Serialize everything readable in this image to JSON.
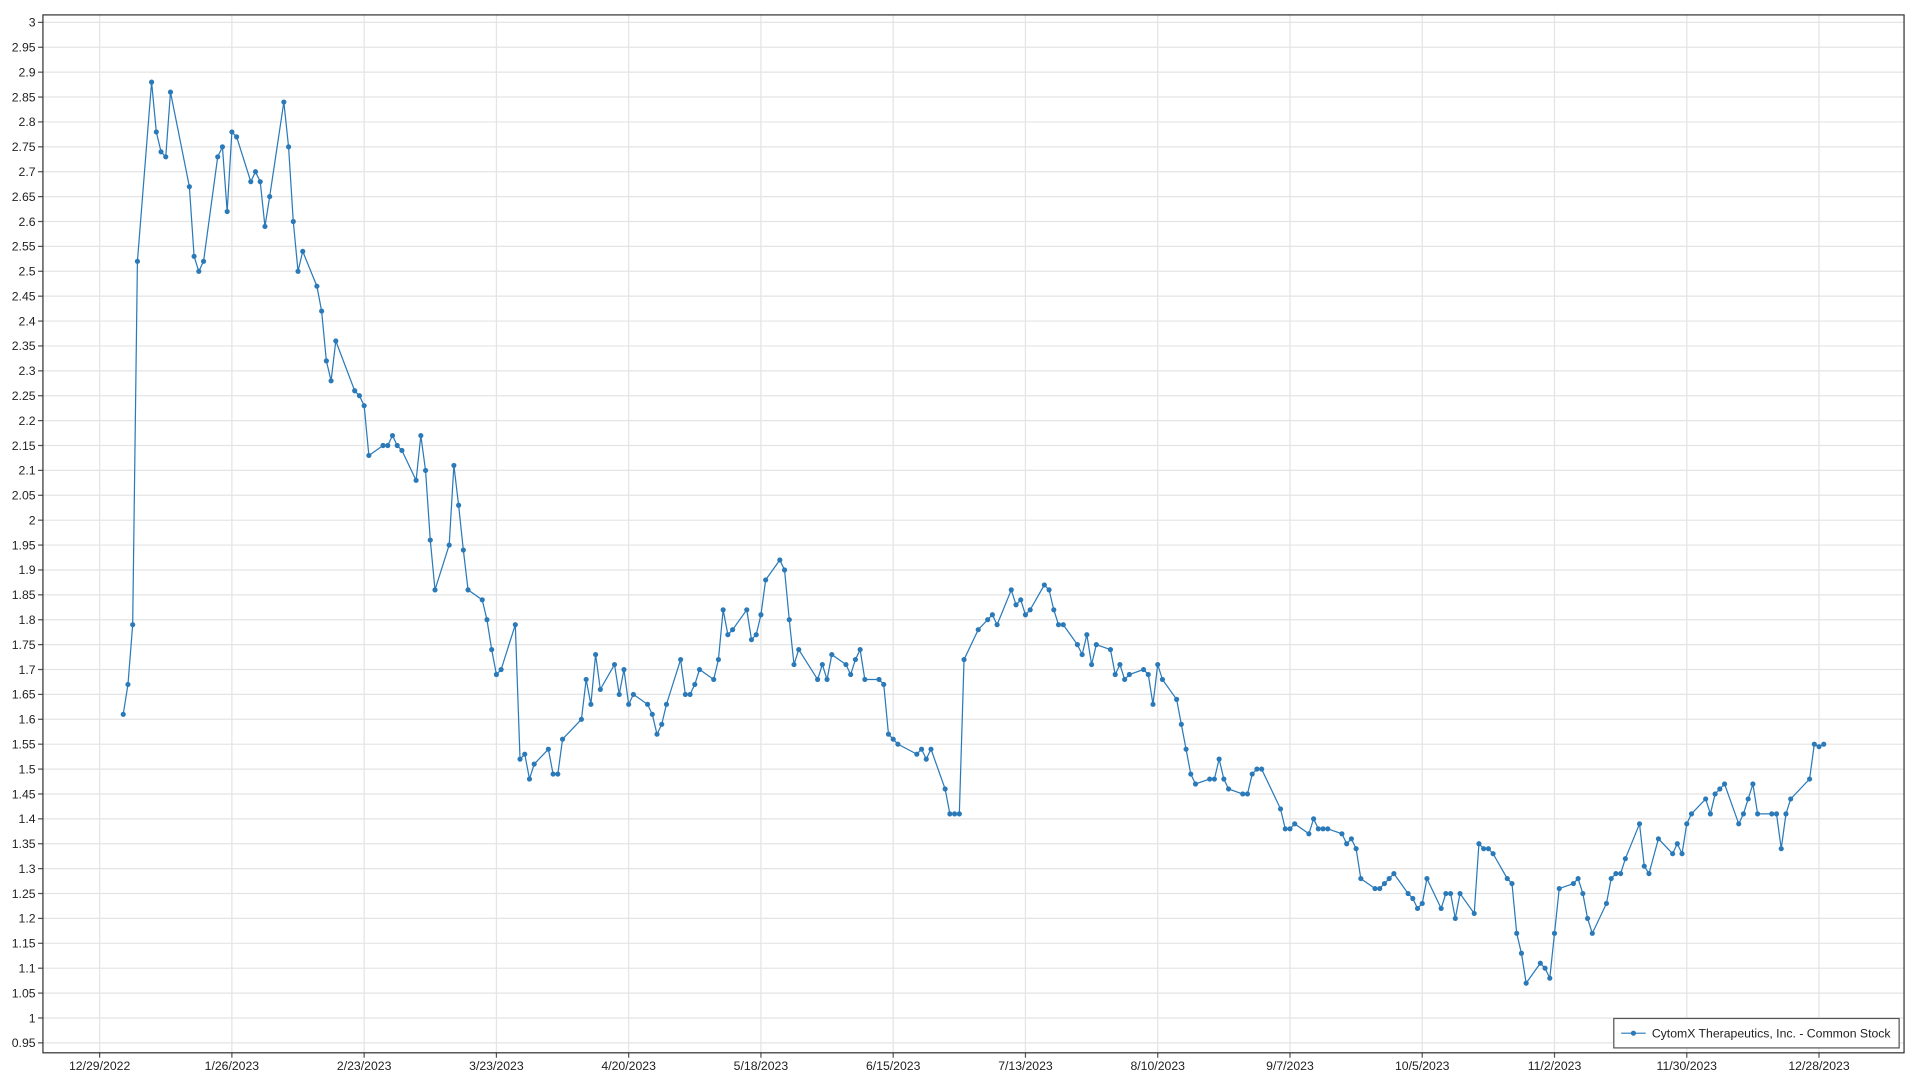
{
  "chart_data": {
    "type": "line",
    "grid": true,
    "legend": "lower right",
    "xlim": [
      "12/17/2022",
      "1/15/2024"
    ],
    "ylim": [
      0.93,
      3.015
    ],
    "xticks": [
      "12/29/2022",
      "1/26/2023",
      "2/23/2023",
      "3/23/2023",
      "4/20/2023",
      "5/18/2023",
      "6/15/2023",
      "7/13/2023",
      "8/10/2023",
      "9/7/2023",
      "10/5/2023",
      "11/2/2023",
      "11/30/2023",
      "12/28/2023"
    ],
    "yticks": [
      0.95,
      1,
      1.05,
      1.1,
      1.15,
      1.2,
      1.25,
      1.3,
      1.35,
      1.4,
      1.45,
      1.5,
      1.55,
      1.6,
      1.65,
      1.7,
      1.75,
      1.8,
      1.85,
      1.9,
      1.95,
      2,
      2.05,
      2.1,
      2.15,
      2.2,
      2.25,
      2.3,
      2.35,
      2.4,
      2.45,
      2.5,
      2.55,
      2.6,
      2.65,
      2.7,
      2.75,
      2.8,
      2.85,
      2.9,
      2.95,
      3
    ],
    "x": [
      "1/3/2023",
      "1/4/2023",
      "1/5/2023",
      "1/6/2023",
      "1/9/2023",
      "1/10/2023",
      "1/11/2023",
      "1/12/2023",
      "1/13/2023",
      "1/17/2023",
      "1/18/2023",
      "1/19/2023",
      "1/20/2023",
      "1/23/2023",
      "1/24/2023",
      "1/25/2023",
      "1/26/2023",
      "1/27/2023",
      "1/30/2023",
      "1/31/2023",
      "2/1/2023",
      "2/2/2023",
      "2/3/2023",
      "2/6/2023",
      "2/7/2023",
      "2/8/2023",
      "2/9/2023",
      "2/10/2023",
      "2/13/2023",
      "2/14/2023",
      "2/15/2023",
      "2/16/2023",
      "2/17/2023",
      "2/21/2023",
      "2/22/2023",
      "2/23/2023",
      "2/24/2023",
      "2/27/2023",
      "2/28/2023",
      "3/1/2023",
      "3/2/2023",
      "3/3/2023",
      "3/6/2023",
      "3/7/2023",
      "3/8/2023",
      "3/9/2023",
      "3/10/2023",
      "3/13/2023",
      "3/14/2023",
      "3/15/2023",
      "3/16/2023",
      "3/17/2023",
      "3/20/2023",
      "3/21/2023",
      "3/22/2023",
      "3/23/2023",
      "3/24/2023",
      "3/27/2023",
      "3/28/2023",
      "3/29/2023",
      "3/30/2023",
      "3/31/2023",
      "4/3/2023",
      "4/4/2023",
      "4/5/2023",
      "4/6/2023",
      "4/10/2023",
      "4/11/2023",
      "4/12/2023",
      "4/13/2023",
      "4/14/2023",
      "4/17/2023",
      "4/18/2023",
      "4/19/2023",
      "4/20/2023",
      "4/21/2023",
      "4/24/2023",
      "4/25/2023",
      "4/26/2023",
      "4/27/2023",
      "4/28/2023",
      "5/1/2023",
      "5/2/2023",
      "5/3/2023",
      "5/4/2023",
      "5/5/2023",
      "5/8/2023",
      "5/9/2023",
      "5/10/2023",
      "5/11/2023",
      "5/12/2023",
      "5/15/2023",
      "5/16/2023",
      "5/17/2023",
      "5/18/2023",
      "5/19/2023",
      "5/22/2023",
      "5/23/2023",
      "5/24/2023",
      "5/25/2023",
      "5/26/2023",
      "5/30/2023",
      "5/31/2023",
      "6/1/2023",
      "6/2/2023",
      "6/5/2023",
      "6/6/2023",
      "6/7/2023",
      "6/8/2023",
      "6/9/2023",
      "6/12/2023",
      "6/13/2023",
      "6/14/2023",
      "6/15/2023",
      "6/16/2023",
      "6/20/2023",
      "6/21/2023",
      "6/22/2023",
      "6/23/2023",
      "6/26/2023",
      "6/27/2023",
      "6/28/2023",
      "6/29/2023",
      "6/30/2023",
      "7/3/2023",
      "7/5/2023",
      "7/6/2023",
      "7/7/2023",
      "7/10/2023",
      "7/11/2023",
      "7/12/2023",
      "7/13/2023",
      "7/14/2023",
      "7/17/2023",
      "7/18/2023",
      "7/19/2023",
      "7/20/2023",
      "7/21/2023",
      "7/24/2023",
      "7/25/2023",
      "7/26/2023",
      "7/27/2023",
      "7/28/2023",
      "7/31/2023",
      "8/1/2023",
      "8/2/2023",
      "8/3/2023",
      "8/4/2023",
      "8/7/2023",
      "8/8/2023",
      "8/9/2023",
      "8/10/2023",
      "8/11/2023",
      "8/14/2023",
      "8/15/2023",
      "8/16/2023",
      "8/17/2023",
      "8/18/2023",
      "8/21/2023",
      "8/22/2023",
      "8/23/2023",
      "8/24/2023",
      "8/25/2023",
      "8/28/2023",
      "8/29/2023",
      "8/30/2023",
      "8/31/2023",
      "9/1/2023",
      "9/5/2023",
      "9/6/2023",
      "9/7/2023",
      "9/8/2023",
      "9/11/2023",
      "9/12/2023",
      "9/13/2023",
      "9/14/2023",
      "9/15/2023",
      "9/18/2023",
      "9/19/2023",
      "9/20/2023",
      "9/21/2023",
      "9/22/2023",
      "9/25/2023",
      "9/26/2023",
      "9/27/2023",
      "9/28/2023",
      "9/29/2023",
      "10/2/2023",
      "10/3/2023",
      "10/4/2023",
      "10/5/2023",
      "10/6/2023",
      "10/9/2023",
      "10/10/2023",
      "10/11/2023",
      "10/12/2023",
      "10/13/2023",
      "10/16/2023",
      "10/17/2023",
      "10/18/2023",
      "10/19/2023",
      "10/20/2023",
      "10/23/2023",
      "10/24/2023",
      "10/25/2023",
      "10/26/2023",
      "10/27/2023",
      "10/30/2023",
      "10/31/2023",
      "11/1/2023",
      "11/2/2023",
      "11/3/2023",
      "11/6/2023",
      "11/7/2023",
      "11/8/2023",
      "11/9/2023",
      "11/10/2023",
      "11/13/2023",
      "11/14/2023",
      "11/15/2023",
      "11/16/2023",
      "11/17/2023",
      "11/20/2023",
      "11/21/2023",
      "11/22/2023",
      "11/24/2023",
      "11/27/2023",
      "11/28/2023",
      "11/29/2023",
      "11/30/2023",
      "12/1/2023",
      "12/4/2023",
      "12/5/2023",
      "12/6/2023",
      "12/7/2023",
      "12/8/2023",
      "12/11/2023",
      "12/12/2023",
      "12/13/2023",
      "12/14/2023",
      "12/15/2023",
      "12/18/2023",
      "12/19/2023",
      "12/20/2023",
      "12/21/2023",
      "12/22/2023",
      "12/26/2023",
      "12/27/2023",
      "12/28/2023",
      "12/29/2023"
    ],
    "series": [
      {
        "name": "CytomX Therapeutics, Inc. - Common Stock",
        "color": "#2a7ab9",
        "values": [
          1.61,
          1.67,
          1.79,
          2.52,
          2.88,
          2.78,
          2.74,
          2.73,
          2.86,
          2.67,
          2.53,
          2.5,
          2.52,
          2.73,
          2.75,
          2.62,
          2.78,
          2.77,
          2.68,
          2.7,
          2.68,
          2.59,
          2.65,
          2.84,
          2.75,
          2.6,
          2.5,
          2.54,
          2.47,
          2.42,
          2.32,
          2.28,
          2.36,
          2.26,
          2.25,
          2.23,
          2.13,
          2.15,
          2.15,
          2.17,
          2.15,
          2.14,
          2.08,
          2.17,
          2.1,
          1.96,
          1.86,
          1.95,
          2.11,
          2.03,
          1.94,
          1.86,
          1.84,
          1.8,
          1.74,
          1.69,
          1.7,
          1.79,
          1.52,
          1.53,
          1.48,
          1.51,
          1.54,
          1.49,
          1.49,
          1.56,
          1.6,
          1.68,
          1.63,
          1.73,
          1.66,
          1.71,
          1.65,
          1.7,
          1.63,
          1.65,
          1.63,
          1.61,
          1.57,
          1.59,
          1.63,
          1.72,
          1.65,
          1.65,
          1.67,
          1.7,
          1.68,
          1.72,
          1.82,
          1.77,
          1.78,
          1.82,
          1.76,
          1.77,
          1.81,
          1.88,
          1.92,
          1.9,
          1.8,
          1.71,
          1.74,
          1.68,
          1.71,
          1.68,
          1.73,
          1.71,
          1.69,
          1.72,
          1.74,
          1.68,
          1.68,
          1.67,
          1.57,
          1.56,
          1.55,
          1.53,
          1.54,
          1.52,
          1.54,
          1.46,
          1.41,
          1.41,
          1.41,
          1.72,
          1.78,
          1.8,
          1.81,
          1.79,
          1.86,
          1.83,
          1.84,
          1.81,
          1.82,
          1.87,
          1.86,
          1.82,
          1.79,
          1.79,
          1.75,
          1.73,
          1.77,
          1.71,
          1.75,
          1.74,
          1.69,
          1.71,
          1.68,
          1.69,
          1.7,
          1.69,
          1.63,
          1.71,
          1.68,
          1.64,
          1.59,
          1.54,
          1.49,
          1.47,
          1.48,
          1.48,
          1.52,
          1.48,
          1.46,
          1.45,
          1.45,
          1.49,
          1.5,
          1.5,
          1.42,
          1.38,
          1.38,
          1.39,
          1.37,
          1.4,
          1.38,
          1.38,
          1.38,
          1.37,
          1.35,
          1.36,
          1.34,
          1.28,
          1.26,
          1.26,
          1.27,
          1.28,
          1.29,
          1.25,
          1.24,
          1.22,
          1.23,
          1.28,
          1.22,
          1.25,
          1.25,
          1.2,
          1.25,
          1.21,
          1.35,
          1.34,
          1.34,
          1.33,
          1.28,
          1.27,
          1.17,
          1.13,
          1.07,
          1.11,
          1.1,
          1.08,
          1.17,
          1.26,
          1.27,
          1.28,
          1.25,
          1.2,
          1.17,
          1.23,
          1.28,
          1.29,
          1.29,
          1.32,
          1.39,
          1.305,
          1.29,
          1.36,
          1.33,
          1.35,
          1.33,
          1.39,
          1.41,
          1.44,
          1.41,
          1.45,
          1.46,
          1.47,
          1.39,
          1.41,
          1.44,
          1.47,
          1.41,
          1.41,
          1.41,
          1.34,
          1.41,
          1.44,
          1.48,
          1.55,
          1.545,
          1.55
        ]
      }
    ]
  }
}
